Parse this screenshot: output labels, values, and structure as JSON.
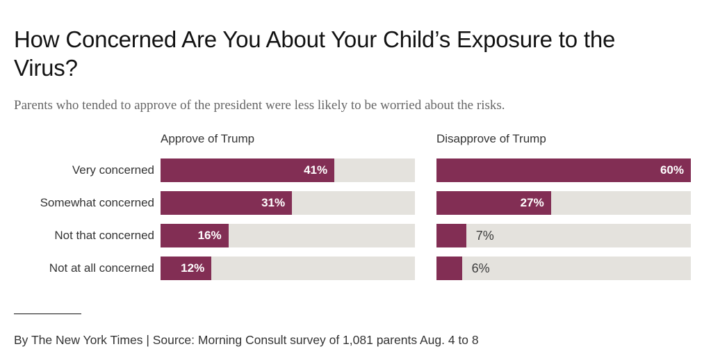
{
  "title": "How Concerned Are You About Your Child’s Exposure to the Virus?",
  "subtitle": "Parents who tended to approve of the president were less likely to be worried about the risks.",
  "footer": {
    "byline": "By The New York Times | Source: Morning Consult survey of 1,081 parents Aug. 4 to 8"
  },
  "chart_data": {
    "type": "bar",
    "orientation": "horizontal",
    "title": "How Concerned Are You About Your Child’s Exposure to the Virus?",
    "categories": [
      "Very concerned",
      "Somewhat concerned",
      "Not that concerned",
      "Not at all concerned"
    ],
    "series": [
      {
        "name": "Approve of Trump",
        "values": [
          41,
          31,
          16,
          12
        ]
      },
      {
        "name": "Disapprove of Trump",
        "values": [
          60,
          27,
          7,
          6
        ]
      }
    ],
    "value_suffix": "%",
    "xlim": [
      0,
      60
    ],
    "grid": false,
    "legend_position": "panel-headers",
    "label_inside_min_value": 10,
    "colors": {
      "bar": "#822e54",
      "track": "#e4e2dd",
      "label_inside": "#ffffff",
      "label_outside": "#3c3c3c"
    }
  }
}
